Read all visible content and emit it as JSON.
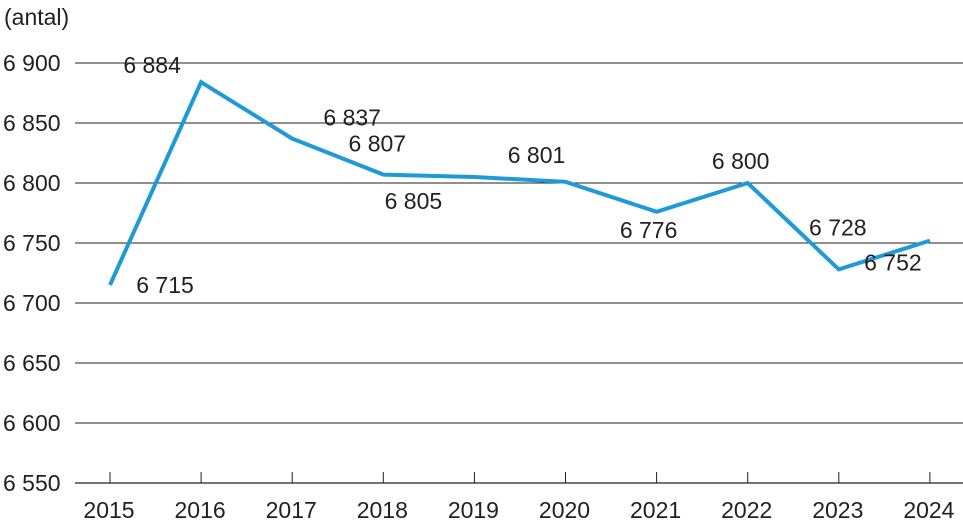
{
  "chart_data": {
    "type": "line",
    "title": "",
    "ylabel": "(antal)",
    "xlabel": "",
    "x": [
      "2015",
      "2016",
      "2017",
      "2018",
      "2019",
      "2020",
      "2021",
      "2022",
      "2023",
      "2024"
    ],
    "values": [
      6715,
      6884,
      6837,
      6807,
      6805,
      6801,
      6776,
      6800,
      6728,
      6752
    ],
    "data_labels": [
      "6 715",
      "6 884",
      "6 837",
      "6 807",
      "6 805",
      "6 801",
      "6 776",
      "6 800",
      "6 728",
      "6 752"
    ],
    "ylim": [
      6550,
      6900
    ],
    "yticks": [
      6550,
      6600,
      6650,
      6700,
      6750,
      6800,
      6850,
      6900
    ],
    "ytick_labels": [
      "6 550",
      "6 600",
      "6 650",
      "6 700",
      "6 750",
      "6 800",
      "6 850",
      "6 900"
    ],
    "grid": "horizontal",
    "legend": "none",
    "colors": {
      "line": "#1e9ad6",
      "grid": "#231f20",
      "text": "#231f20"
    }
  }
}
